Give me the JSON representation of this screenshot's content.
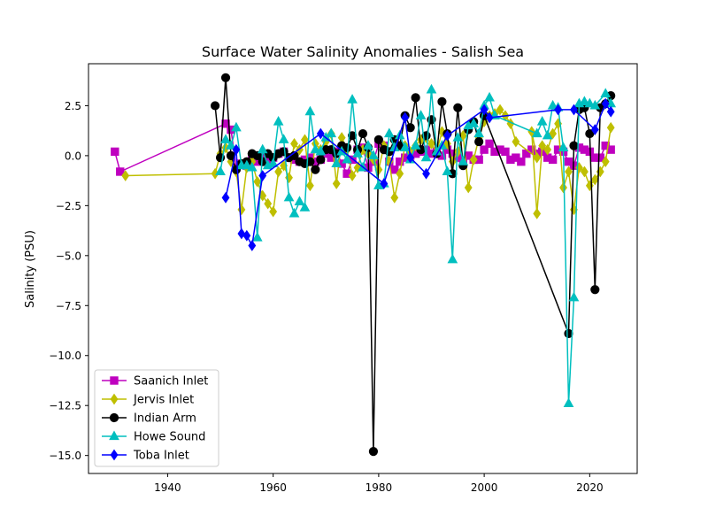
{
  "chart_data": {
    "type": "line",
    "title": "Surface Water Salinity Anomalies - Salish Sea",
    "xlabel": "",
    "ylabel": "Salinity (PSU)",
    "xlim": [
      1925,
      2029
    ],
    "ylim": [
      -15.9,
      4.6
    ],
    "xticks": [
      1940,
      1960,
      1980,
      2000,
      2020
    ],
    "yticks": [
      2.5,
      0.0,
      -2.5,
      -5.0,
      -7.5,
      -10.0,
      -12.5,
      -15.0
    ],
    "grid": false,
    "legend_position": "lower-left",
    "series": [
      {
        "name": "Saanich Inlet",
        "color": "#bf00bf",
        "marker": "square",
        "points": [
          [
            1930,
            0.2
          ],
          [
            1931,
            -0.8
          ],
          [
            1951,
            1.6
          ],
          [
            1952,
            1.3
          ],
          [
            1953,
            -0.6
          ],
          [
            1954,
            -0.4
          ],
          [
            1955,
            -0.5
          ],
          [
            1956,
            -0.1
          ],
          [
            1957,
            -0.3
          ],
          [
            1958,
            0.0
          ],
          [
            1959,
            -0.2
          ],
          [
            1960,
            -0.1
          ],
          [
            1961,
            0.1
          ],
          [
            1962,
            0.2
          ],
          [
            1963,
            -0.1
          ],
          [
            1964,
            -0.2
          ],
          [
            1965,
            -0.3
          ],
          [
            1966,
            -0.2
          ],
          [
            1967,
            -0.1
          ],
          [
            1968,
            -0.3
          ],
          [
            1969,
            -0.2
          ],
          [
            1970,
            0.1
          ],
          [
            1971,
            -0.1
          ],
          [
            1972,
            0.2
          ],
          [
            1973,
            -0.4
          ],
          [
            1974,
            -0.9
          ],
          [
            1975,
            -0.2
          ],
          [
            1976,
            0.3
          ],
          [
            1977,
            0.4
          ],
          [
            1978,
            -0.6
          ],
          [
            1979,
            -0.3
          ],
          [
            1980,
            0.6
          ],
          [
            1981,
            0.5
          ],
          [
            1982,
            -0.3
          ],
          [
            1983,
            -0.7
          ],
          [
            1984,
            -0.3
          ],
          [
            1985,
            -0.1
          ],
          [
            1986,
            0.0
          ],
          [
            1987,
            0.1
          ],
          [
            1988,
            0.2
          ],
          [
            1989,
            0.3
          ],
          [
            1990,
            0.1
          ],
          [
            1991,
            0.2
          ],
          [
            1992,
            0.0
          ],
          [
            1993,
            0.3
          ],
          [
            1994,
            0.1
          ],
          [
            1995,
            -0.1
          ],
          [
            1996,
            -0.4
          ],
          [
            1997,
            0.0
          ],
          [
            1998,
            -0.2
          ],
          [
            1999,
            -0.2
          ],
          [
            2000,
            0.3
          ],
          [
            2001,
            0.6
          ],
          [
            2002,
            0.2
          ],
          [
            2003,
            0.3
          ],
          [
            2004,
            0.2
          ],
          [
            2005,
            -0.2
          ],
          [
            2006,
            -0.1
          ],
          [
            2007,
            -0.3
          ],
          [
            2008,
            0.1
          ],
          [
            2009,
            0.3
          ],
          [
            2010,
            0.1
          ],
          [
            2011,
            0.2
          ],
          [
            2012,
            -0.1
          ],
          [
            2013,
            -0.2
          ],
          [
            2014,
            0.3
          ],
          [
            2015,
            0.2
          ],
          [
            2016,
            -0.3
          ],
          [
            2017,
            -0.5
          ],
          [
            2018,
            0.4
          ],
          [
            2019,
            0.3
          ],
          [
            2020,
            0.2
          ],
          [
            2021,
            -0.1
          ],
          [
            2022,
            -0.1
          ],
          [
            2023,
            0.5
          ],
          [
            2024,
            0.3
          ]
        ]
      },
      {
        "name": "Jervis Inlet",
        "color": "#bfbf00",
        "marker": "diamond",
        "points": [
          [
            1932,
            -1.0
          ],
          [
            1949,
            -0.9
          ],
          [
            1950,
            0.1
          ],
          [
            1951,
            0.4
          ],
          [
            1952,
            -0.3
          ],
          [
            1953,
            -0.8
          ],
          [
            1954,
            -2.7
          ],
          [
            1955,
            -0.6
          ],
          [
            1956,
            -0.3
          ],
          [
            1957,
            -1.3
          ],
          [
            1958,
            -2.0
          ],
          [
            1959,
            -2.4
          ],
          [
            1960,
            -2.8
          ],
          [
            1961,
            -0.8
          ],
          [
            1962,
            -0.5
          ],
          [
            1963,
            -1.1
          ],
          [
            1964,
            0.6
          ],
          [
            1965,
            0.3
          ],
          [
            1966,
            0.8
          ],
          [
            1967,
            -1.5
          ],
          [
            1968,
            0.6
          ],
          [
            1969,
            0.3
          ],
          [
            1970,
            0.7
          ],
          [
            1971,
            1.1
          ],
          [
            1972,
            -1.4
          ],
          [
            1973,
            0.9
          ],
          [
            1974,
            0.3
          ],
          [
            1975,
            -1.0
          ],
          [
            1976,
            -0.6
          ],
          [
            1977,
            0.3
          ],
          [
            1978,
            0.1
          ],
          [
            1979,
            -0.2
          ],
          [
            1980,
            -0.7
          ],
          [
            1981,
            0.5
          ],
          [
            1982,
            -0.3
          ],
          [
            1983,
            -2.1
          ],
          [
            1984,
            -0.9
          ],
          [
            1985,
            0.5
          ],
          [
            1986,
            0.2
          ],
          [
            1987,
            0.5
          ],
          [
            1988,
            0.8
          ],
          [
            1989,
            0.9
          ],
          [
            1990,
            0.6
          ],
          [
            1991,
            0.2
          ],
          [
            1992,
            1.2
          ],
          [
            1993,
            0.6
          ],
          [
            1994,
            -0.3
          ],
          [
            1995,
            0.2
          ],
          [
            1996,
            1.0
          ],
          [
            1997,
            -1.6
          ],
          [
            1998,
            -0.2
          ],
          [
            1999,
            0.9
          ],
          [
            2000,
            1.7
          ],
          [
            2001,
            2.0
          ],
          [
            2002,
            2.1
          ],
          [
            2003,
            2.3
          ],
          [
            2004,
            2.0
          ],
          [
            2005,
            1.6
          ],
          [
            2006,
            0.7
          ],
          [
            2010,
            -0.1
          ],
          [
            2009,
            1.2
          ],
          [
            2010,
            -2.9
          ],
          [
            2011,
            0.5
          ],
          [
            2012,
            0.3
          ],
          [
            2013,
            1.1
          ],
          [
            2014,
            1.6
          ],
          [
            2015,
            -1.6
          ],
          [
            2016,
            -0.8
          ],
          [
            2017,
            -2.7
          ],
          [
            2018,
            -0.6
          ],
          [
            2019,
            -0.8
          ],
          [
            2020,
            -1.5
          ],
          [
            2021,
            -1.2
          ],
          [
            2022,
            -0.8
          ],
          [
            2023,
            -0.3
          ],
          [
            2024,
            1.4
          ]
        ]
      },
      {
        "name": "Indian Arm",
        "color": "#000000",
        "marker": "circle",
        "points": [
          [
            1949,
            2.5
          ],
          [
            1950,
            -0.1
          ],
          [
            1951,
            3.9
          ],
          [
            1952,
            0.0
          ],
          [
            1953,
            -0.7
          ],
          [
            1954,
            -0.4
          ],
          [
            1955,
            -0.3
          ],
          [
            1956,
            0.1
          ],
          [
            1957,
            0.0
          ],
          [
            1958,
            -0.3
          ],
          [
            1959,
            0.1
          ],
          [
            1960,
            -0.1
          ],
          [
            1961,
            0.1
          ],
          [
            1962,
            0.2
          ],
          [
            1963,
            -0.1
          ],
          [
            1964,
            0.0
          ],
          [
            1965,
            -0.3
          ],
          [
            1966,
            -0.4
          ],
          [
            1967,
            -0.3
          ],
          [
            1968,
            -0.7
          ],
          [
            1969,
            -0.2
          ],
          [
            1970,
            0.3
          ],
          [
            1971,
            0.3
          ],
          [
            1972,
            0.1
          ],
          [
            1973,
            0.5
          ],
          [
            1974,
            0.4
          ],
          [
            1975,
            1.0
          ],
          [
            1976,
            0.3
          ],
          [
            1977,
            1.1
          ],
          [
            1978,
            0.4
          ],
          [
            1979,
            -14.8
          ],
          [
            1980,
            0.8
          ],
          [
            1981,
            0.3
          ],
          [
            1982,
            0.2
          ],
          [
            1983,
            0.8
          ],
          [
            1984,
            0.5
          ],
          [
            1985,
            2.0
          ],
          [
            1986,
            1.4
          ],
          [
            1987,
            2.9
          ],
          [
            1988,
            0.3
          ],
          [
            1989,
            1.0
          ],
          [
            1990,
            1.8
          ],
          [
            1991,
            0.1
          ],
          [
            1992,
            2.7
          ],
          [
            1993,
            1.1
          ],
          [
            1994,
            -0.9
          ],
          [
            1995,
            2.4
          ],
          [
            1996,
            -0.5
          ],
          [
            1997,
            1.3
          ],
          [
            1998,
            1.7
          ],
          [
            1999,
            0.7
          ],
          [
            2000,
            2.0
          ],
          [
            2016,
            -8.9
          ],
          [
            2017,
            0.5
          ],
          [
            2018,
            2.3
          ],
          [
            2019,
            2.4
          ],
          [
            2020,
            1.1
          ],
          [
            2021,
            -6.7
          ],
          [
            2022,
            2.4
          ],
          [
            2023,
            2.6
          ],
          [
            2024,
            3.0
          ]
        ]
      },
      {
        "name": "Howe Sound",
        "color": "#00bfbf",
        "marker": "triangle",
        "points": [
          [
            1950,
            -0.8
          ],
          [
            1951,
            0.8
          ],
          [
            1952,
            0.5
          ],
          [
            1953,
            1.4
          ],
          [
            1954,
            -0.5
          ],
          [
            1955,
            -0.5
          ],
          [
            1956,
            -0.6
          ],
          [
            1957,
            -4.1
          ],
          [
            1958,
            0.3
          ],
          [
            1959,
            -0.5
          ],
          [
            1960,
            -0.4
          ],
          [
            1961,
            1.7
          ],
          [
            1962,
            0.8
          ],
          [
            1963,
            -2.1
          ],
          [
            1964,
            -2.9
          ],
          [
            1965,
            -2.3
          ],
          [
            1966,
            -2.6
          ],
          [
            1967,
            2.2
          ],
          [
            1968,
            0.3
          ],
          [
            1969,
            0.2
          ],
          [
            1970,
            0.9
          ],
          [
            1971,
            1.1
          ],
          [
            1972,
            -0.4
          ],
          [
            1973,
            0.2
          ],
          [
            1974,
            -0.2
          ],
          [
            1975,
            2.8
          ],
          [
            1976,
            0.1
          ],
          [
            1977,
            -0.6
          ],
          [
            1978,
            0.5
          ],
          [
            1979,
            0.0
          ],
          [
            1980,
            -1.5
          ],
          [
            1981,
            -1.4
          ],
          [
            1982,
            1.1
          ],
          [
            1983,
            0.4
          ],
          [
            1984,
            1.0
          ],
          [
            1985,
            0.4
          ],
          [
            1986,
            -0.2
          ],
          [
            1987,
            0.5
          ],
          [
            1988,
            2.0
          ],
          [
            1989,
            -0.1
          ],
          [
            1990,
            3.3
          ],
          [
            1991,
            0.2
          ],
          [
            1992,
            0.5
          ],
          [
            1993,
            -0.8
          ],
          [
            1994,
            -5.2
          ],
          [
            1995,
            0.9
          ],
          [
            1996,
            -0.3
          ],
          [
            1997,
            1.5
          ],
          [
            1998,
            1.6
          ],
          [
            1999,
            1.1
          ],
          [
            2000,
            2.5
          ],
          [
            2001,
            2.9
          ],
          [
            2002,
            2.0
          ],
          [
            2010,
            1.1
          ],
          [
            2011,
            1.7
          ],
          [
            2012,
            1.0
          ],
          [
            2013,
            2.5
          ],
          [
            2014,
            2.4
          ],
          [
            2015,
            0.4
          ],
          [
            2016,
            -12.4
          ],
          [
            2017,
            -7.1
          ],
          [
            2018,
            2.6
          ],
          [
            2019,
            2.7
          ],
          [
            2020,
            2.6
          ],
          [
            2021,
            2.5
          ],
          [
            2023,
            3.1
          ],
          [
            2024,
            2.6
          ]
        ]
      },
      {
        "name": "Toba Inlet",
        "color": "#0000ff",
        "marker": "diamond",
        "points": [
          [
            1951,
            -2.1
          ],
          [
            1953,
            0.3
          ],
          [
            1954,
            -3.9
          ],
          [
            1955,
            -4.0
          ],
          [
            1956,
            -4.5
          ],
          [
            1958,
            -1.0
          ],
          [
            1969,
            1.1
          ],
          [
            1981,
            -1.4
          ],
          [
            1985,
            1.9
          ],
          [
            1986,
            -0.1
          ],
          [
            1989,
            -0.9
          ],
          [
            1993,
            1.0
          ],
          [
            2000,
            2.3
          ],
          [
            2001,
            1.9
          ],
          [
            2014,
            2.3
          ],
          [
            2017,
            2.3
          ],
          [
            2021,
            1.3
          ],
          [
            2023,
            2.6
          ],
          [
            2024,
            2.2
          ]
        ]
      }
    ]
  }
}
